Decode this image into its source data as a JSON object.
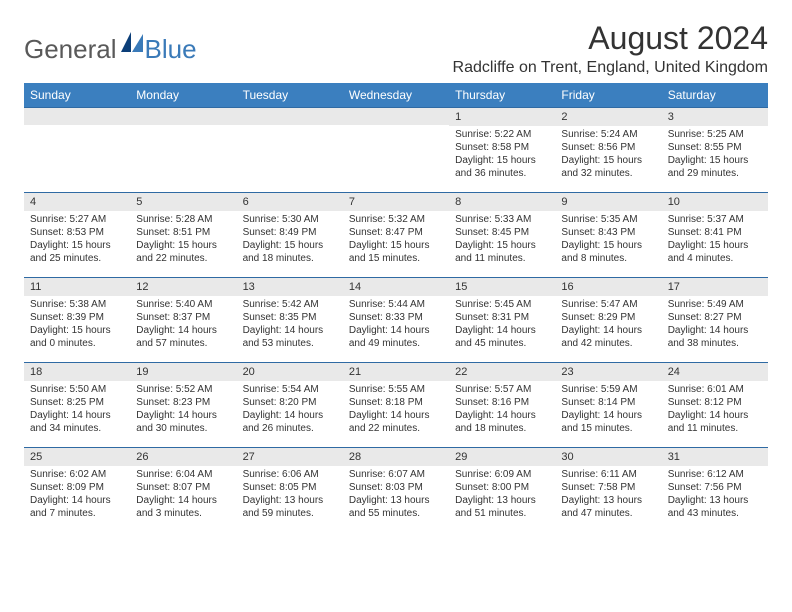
{
  "logo": {
    "word1": "General",
    "word2": "Blue"
  },
  "title": "August 2024",
  "location": "Radcliffe on Trent, England, United Kingdom",
  "colors": {
    "header_bg": "#3b7fbf",
    "header_text": "#ffffff",
    "daynum_bg": "#e9e9e9",
    "divider": "#2f6aa3",
    "text": "#333333",
    "logo_gray": "#595959",
    "logo_blue": "#3a7ab8",
    "page_bg": "#ffffff"
  },
  "fonts": {
    "title_size": 32,
    "location_size": 16,
    "dayheader_size": 12,
    "daynum_size": 11,
    "body_size": 10
  },
  "dayNames": [
    "Sunday",
    "Monday",
    "Tuesday",
    "Wednesday",
    "Thursday",
    "Friday",
    "Saturday"
  ],
  "weeks": [
    [
      null,
      null,
      null,
      null,
      {
        "n": "1",
        "sr": "Sunrise: 5:22 AM",
        "ss": "Sunset: 8:58 PM",
        "d1": "Daylight: 15 hours",
        "d2": "and 36 minutes."
      },
      {
        "n": "2",
        "sr": "Sunrise: 5:24 AM",
        "ss": "Sunset: 8:56 PM",
        "d1": "Daylight: 15 hours",
        "d2": "and 32 minutes."
      },
      {
        "n": "3",
        "sr": "Sunrise: 5:25 AM",
        "ss": "Sunset: 8:55 PM",
        "d1": "Daylight: 15 hours",
        "d2": "and 29 minutes."
      }
    ],
    [
      {
        "n": "4",
        "sr": "Sunrise: 5:27 AM",
        "ss": "Sunset: 8:53 PM",
        "d1": "Daylight: 15 hours",
        "d2": "and 25 minutes."
      },
      {
        "n": "5",
        "sr": "Sunrise: 5:28 AM",
        "ss": "Sunset: 8:51 PM",
        "d1": "Daylight: 15 hours",
        "d2": "and 22 minutes."
      },
      {
        "n": "6",
        "sr": "Sunrise: 5:30 AM",
        "ss": "Sunset: 8:49 PM",
        "d1": "Daylight: 15 hours",
        "d2": "and 18 minutes."
      },
      {
        "n": "7",
        "sr": "Sunrise: 5:32 AM",
        "ss": "Sunset: 8:47 PM",
        "d1": "Daylight: 15 hours",
        "d2": "and 15 minutes."
      },
      {
        "n": "8",
        "sr": "Sunrise: 5:33 AM",
        "ss": "Sunset: 8:45 PM",
        "d1": "Daylight: 15 hours",
        "d2": "and 11 minutes."
      },
      {
        "n": "9",
        "sr": "Sunrise: 5:35 AM",
        "ss": "Sunset: 8:43 PM",
        "d1": "Daylight: 15 hours",
        "d2": "and 8 minutes."
      },
      {
        "n": "10",
        "sr": "Sunrise: 5:37 AM",
        "ss": "Sunset: 8:41 PM",
        "d1": "Daylight: 15 hours",
        "d2": "and 4 minutes."
      }
    ],
    [
      {
        "n": "11",
        "sr": "Sunrise: 5:38 AM",
        "ss": "Sunset: 8:39 PM",
        "d1": "Daylight: 15 hours",
        "d2": "and 0 minutes."
      },
      {
        "n": "12",
        "sr": "Sunrise: 5:40 AM",
        "ss": "Sunset: 8:37 PM",
        "d1": "Daylight: 14 hours",
        "d2": "and 57 minutes."
      },
      {
        "n": "13",
        "sr": "Sunrise: 5:42 AM",
        "ss": "Sunset: 8:35 PM",
        "d1": "Daylight: 14 hours",
        "d2": "and 53 minutes."
      },
      {
        "n": "14",
        "sr": "Sunrise: 5:44 AM",
        "ss": "Sunset: 8:33 PM",
        "d1": "Daylight: 14 hours",
        "d2": "and 49 minutes."
      },
      {
        "n": "15",
        "sr": "Sunrise: 5:45 AM",
        "ss": "Sunset: 8:31 PM",
        "d1": "Daylight: 14 hours",
        "d2": "and 45 minutes."
      },
      {
        "n": "16",
        "sr": "Sunrise: 5:47 AM",
        "ss": "Sunset: 8:29 PM",
        "d1": "Daylight: 14 hours",
        "d2": "and 42 minutes."
      },
      {
        "n": "17",
        "sr": "Sunrise: 5:49 AM",
        "ss": "Sunset: 8:27 PM",
        "d1": "Daylight: 14 hours",
        "d2": "and 38 minutes."
      }
    ],
    [
      {
        "n": "18",
        "sr": "Sunrise: 5:50 AM",
        "ss": "Sunset: 8:25 PM",
        "d1": "Daylight: 14 hours",
        "d2": "and 34 minutes."
      },
      {
        "n": "19",
        "sr": "Sunrise: 5:52 AM",
        "ss": "Sunset: 8:23 PM",
        "d1": "Daylight: 14 hours",
        "d2": "and 30 minutes."
      },
      {
        "n": "20",
        "sr": "Sunrise: 5:54 AM",
        "ss": "Sunset: 8:20 PM",
        "d1": "Daylight: 14 hours",
        "d2": "and 26 minutes."
      },
      {
        "n": "21",
        "sr": "Sunrise: 5:55 AM",
        "ss": "Sunset: 8:18 PM",
        "d1": "Daylight: 14 hours",
        "d2": "and 22 minutes."
      },
      {
        "n": "22",
        "sr": "Sunrise: 5:57 AM",
        "ss": "Sunset: 8:16 PM",
        "d1": "Daylight: 14 hours",
        "d2": "and 18 minutes."
      },
      {
        "n": "23",
        "sr": "Sunrise: 5:59 AM",
        "ss": "Sunset: 8:14 PM",
        "d1": "Daylight: 14 hours",
        "d2": "and 15 minutes."
      },
      {
        "n": "24",
        "sr": "Sunrise: 6:01 AM",
        "ss": "Sunset: 8:12 PM",
        "d1": "Daylight: 14 hours",
        "d2": "and 11 minutes."
      }
    ],
    [
      {
        "n": "25",
        "sr": "Sunrise: 6:02 AM",
        "ss": "Sunset: 8:09 PM",
        "d1": "Daylight: 14 hours",
        "d2": "and 7 minutes."
      },
      {
        "n": "26",
        "sr": "Sunrise: 6:04 AM",
        "ss": "Sunset: 8:07 PM",
        "d1": "Daylight: 14 hours",
        "d2": "and 3 minutes."
      },
      {
        "n": "27",
        "sr": "Sunrise: 6:06 AM",
        "ss": "Sunset: 8:05 PM",
        "d1": "Daylight: 13 hours",
        "d2": "and 59 minutes."
      },
      {
        "n": "28",
        "sr": "Sunrise: 6:07 AM",
        "ss": "Sunset: 8:03 PM",
        "d1": "Daylight: 13 hours",
        "d2": "and 55 minutes."
      },
      {
        "n": "29",
        "sr": "Sunrise: 6:09 AM",
        "ss": "Sunset: 8:00 PM",
        "d1": "Daylight: 13 hours",
        "d2": "and 51 minutes."
      },
      {
        "n": "30",
        "sr": "Sunrise: 6:11 AM",
        "ss": "Sunset: 7:58 PM",
        "d1": "Daylight: 13 hours",
        "d2": "and 47 minutes."
      },
      {
        "n": "31",
        "sr": "Sunrise: 6:12 AM",
        "ss": "Sunset: 7:56 PM",
        "d1": "Daylight: 13 hours",
        "d2": "and 43 minutes."
      }
    ]
  ]
}
